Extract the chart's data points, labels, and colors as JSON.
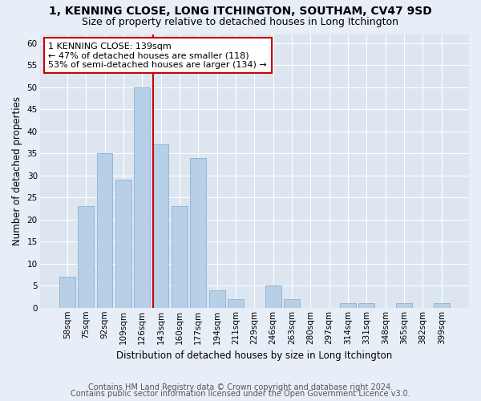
{
  "title1": "1, KENNING CLOSE, LONG ITCHINGTON, SOUTHAM, CV47 9SD",
  "title2": "Size of property relative to detached houses in Long Itchington",
  "xlabel": "Distribution of detached houses by size in Long Itchington",
  "ylabel": "Number of detached properties",
  "footnote1": "Contains HM Land Registry data © Crown copyright and database right 2024.",
  "footnote2": "Contains public sector information licensed under the Open Government Licence v3.0.",
  "bar_labels": [
    "58sqm",
    "75sqm",
    "92sqm",
    "109sqm",
    "126sqm",
    "143sqm",
    "160sqm",
    "177sqm",
    "194sqm",
    "211sqm",
    "229sqm",
    "246sqm",
    "263sqm",
    "280sqm",
    "297sqm",
    "314sqm",
    "331sqm",
    "348sqm",
    "365sqm",
    "382sqm",
    "399sqm"
  ],
  "bar_values": [
    7,
    23,
    35,
    29,
    50,
    37,
    23,
    34,
    4,
    2,
    0,
    5,
    2,
    0,
    0,
    1,
    1,
    0,
    1,
    0,
    1
  ],
  "bar_color": "#b8cfe8",
  "bar_edge_color": "#8aafd4",
  "vline_color": "#cc0000",
  "vline_x": 4.57,
  "annotation_title": "1 KENNING CLOSE: 139sqm",
  "annotation_line1": "← 47% of detached houses are smaller (118)",
  "annotation_line2": "53% of semi-detached houses are larger (134) →",
  "annotation_box_edge_color": "#cc0000",
  "annotation_box_face_color": "#ffffff",
  "ylim": [
    0,
    62
  ],
  "yticks": [
    0,
    5,
    10,
    15,
    20,
    25,
    30,
    35,
    40,
    45,
    50,
    55,
    60
  ],
  "background_color": "#dde6f0",
  "fig_background_color": "#e8eef7",
  "grid_color": "#ffffff",
  "title1_fontsize": 10,
  "title2_fontsize": 9,
  "xlabel_fontsize": 8.5,
  "ylabel_fontsize": 8.5,
  "tick_fontsize": 7.5,
  "annotation_fontsize": 8,
  "footnote_fontsize": 7
}
